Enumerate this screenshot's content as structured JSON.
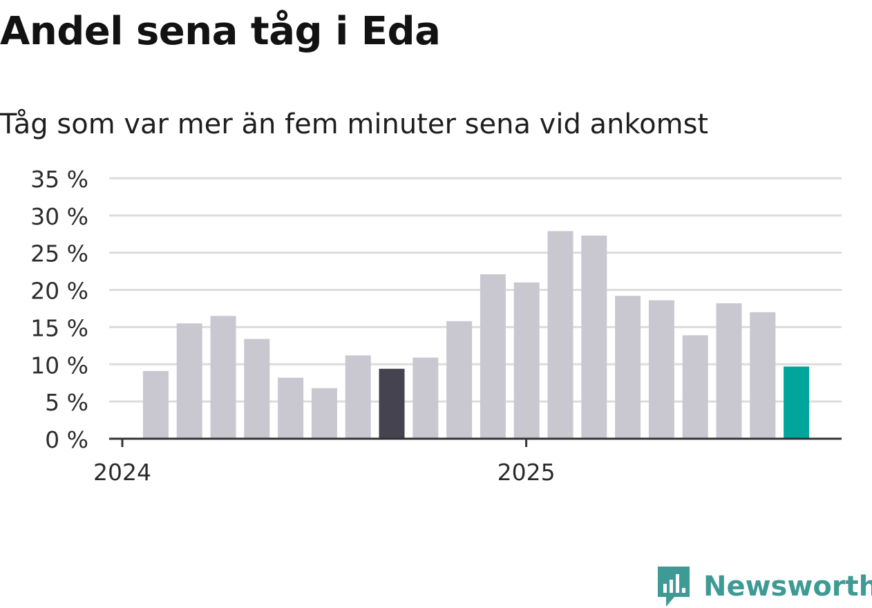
{
  "header": {
    "title": "Andel sena tåg i Eda",
    "subtitle": "Tåg som var mer än fem minuter sena vid ankomst"
  },
  "brand": {
    "name": "Newsworthy",
    "icon": "newsworthy-logo-icon",
    "color": "#3e9a94"
  },
  "colors": {
    "bar_default": "#c9c8d1",
    "bar_highlight_dark": "#45434f",
    "bar_highlight_latest": "#00a69c",
    "grid": "#dcdcdc",
    "axis": "#333333",
    "tick_text": "#2b2b2b"
  },
  "chart_data": {
    "type": "bar",
    "title": "Andel sena tåg i Eda",
    "subtitle": "Tåg som var mer än fem minuter sena vid ankomst",
    "x": [
      "2024-01",
      "2024-02",
      "2024-03",
      "2024-04",
      "2024-05",
      "2024-06",
      "2024-07",
      "2024-08",
      "2024-09",
      "2024-10",
      "2024-11",
      "2024-12",
      "2025-01",
      "2025-02",
      "2025-03",
      "2025-04",
      "2025-05",
      "2025-06",
      "2025-07",
      "2025-08"
    ],
    "values": [
      9.1,
      15.5,
      16.5,
      13.4,
      8.2,
      6.8,
      11.2,
      9.4,
      10.9,
      15.8,
      22.1,
      21.0,
      27.9,
      27.3,
      19.2,
      18.6,
      13.9,
      18.2,
      17.0,
      9.7
    ],
    "highlight": [
      {
        "index": 7,
        "style": "dark"
      },
      {
        "index": 19,
        "style": "latest"
      }
    ],
    "ylim": [
      0,
      35
    ],
    "y_ticks": [
      "0 %",
      "5 %",
      "10 %",
      "15 %",
      "20 %",
      "25 %",
      "30 %",
      "35 %"
    ],
    "x_ticks": [
      {
        "label": "2024",
        "index": 0
      },
      {
        "label": "2025",
        "index": 12
      }
    ],
    "grid": true,
    "legend": "none"
  }
}
